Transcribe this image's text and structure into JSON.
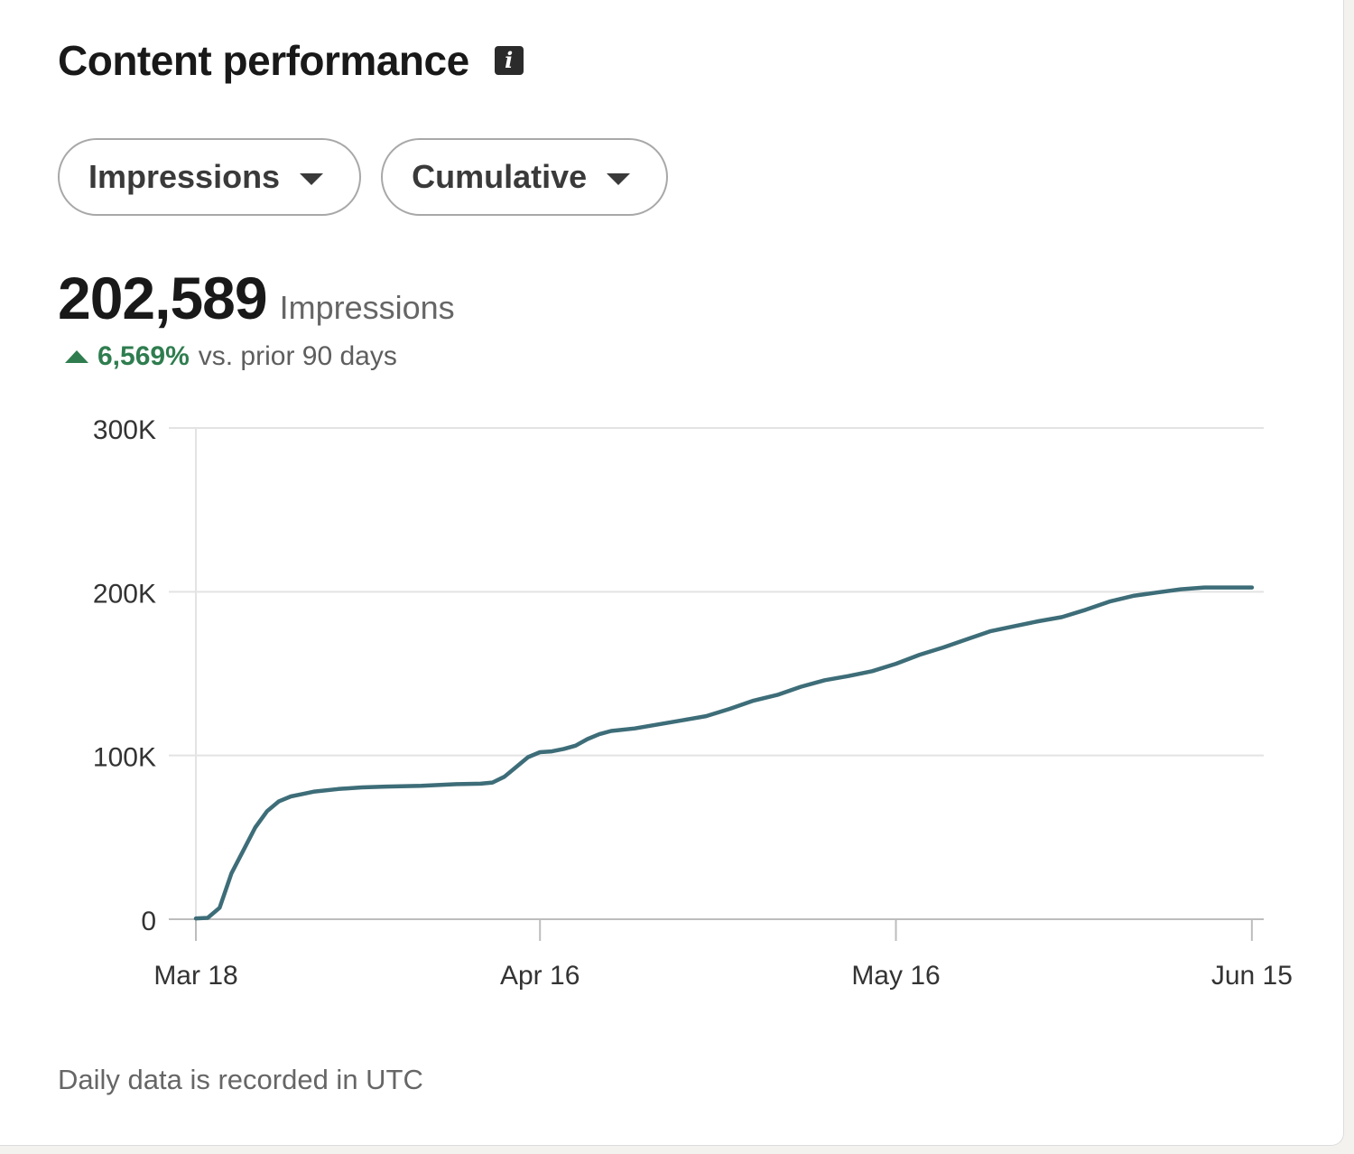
{
  "header": {
    "title": "Content performance",
    "info_icon": "info-icon"
  },
  "filters": {
    "metric_label": "Impressions",
    "mode_label": "Cumulative",
    "caret_icon": "caret-down-icon"
  },
  "summary": {
    "value": "202,589",
    "label": "Impressions",
    "delta_value": "6,569%",
    "delta_text": "vs. prior 90 days",
    "delta_color": "#2f7d4f"
  },
  "footnote": "Daily data is recorded in UTC",
  "colors": {
    "line": "#3d6d78",
    "grid": "#e3e3e3",
    "axis": "#bdbdbd",
    "positive": "#2f7d4f"
  },
  "chart_data": {
    "type": "line",
    "title": "",
    "xlabel": "",
    "ylabel": "",
    "ylim": [
      0,
      300000
    ],
    "yticks": [
      0,
      100000,
      200000,
      300000
    ],
    "ytick_labels": [
      "0",
      "100K",
      "200K",
      "300K"
    ],
    "xlim": [
      "2024-03-18",
      "2024-06-16"
    ],
    "xticks": [
      "2024-03-18",
      "2024-04-16",
      "2024-05-16",
      "2024-06-15"
    ],
    "xtick_labels": [
      "Mar 18",
      "Apr 16",
      "May 16",
      "Jun 15"
    ],
    "grid": true,
    "legend": "none",
    "series": [
      {
        "x": [
          "2024-03-18",
          "2024-03-19",
          "2024-03-20",
          "2024-03-21",
          "2024-03-22",
          "2024-03-23",
          "2024-03-24",
          "2024-03-25",
          "2024-03-26",
          "2024-03-27",
          "2024-03-28",
          "2024-03-30",
          "2024-04-01",
          "2024-04-03",
          "2024-04-06",
          "2024-04-09",
          "2024-04-11",
          "2024-04-12",
          "2024-04-13",
          "2024-04-14",
          "2024-04-15",
          "2024-04-16",
          "2024-04-17",
          "2024-04-18",
          "2024-04-19",
          "2024-04-20",
          "2024-04-21",
          "2024-04-22",
          "2024-04-24",
          "2024-04-26",
          "2024-04-28",
          "2024-04-30",
          "2024-05-02",
          "2024-05-04",
          "2024-05-06",
          "2024-05-08",
          "2024-05-10",
          "2024-05-12",
          "2024-05-14",
          "2024-05-16",
          "2024-05-18",
          "2024-05-20",
          "2024-05-22",
          "2024-05-24",
          "2024-05-26",
          "2024-05-28",
          "2024-05-30",
          "2024-06-01",
          "2024-06-03",
          "2024-06-05",
          "2024-06-07",
          "2024-06-09",
          "2024-06-11",
          "2024-06-13",
          "2024-06-15"
        ],
        "y": [
          500,
          800,
          7000,
          28000,
          42000,
          56000,
          66000,
          72000,
          75000,
          76500,
          78000,
          79500,
          80500,
          81000,
          81500,
          82500,
          82800,
          83500,
          87000,
          93000,
          99000,
          102000,
          102500,
          104000,
          106000,
          110000,
          113000,
          115000,
          116500,
          119000,
          121500,
          124000,
          128500,
          133500,
          137000,
          142000,
          146000,
          148500,
          151500,
          156000,
          161500,
          166000,
          171000,
          176000,
          179000,
          182000,
          184500,
          189000,
          194000,
          197500,
          199500,
          201500,
          202589,
          202589,
          202589
        ]
      }
    ]
  }
}
